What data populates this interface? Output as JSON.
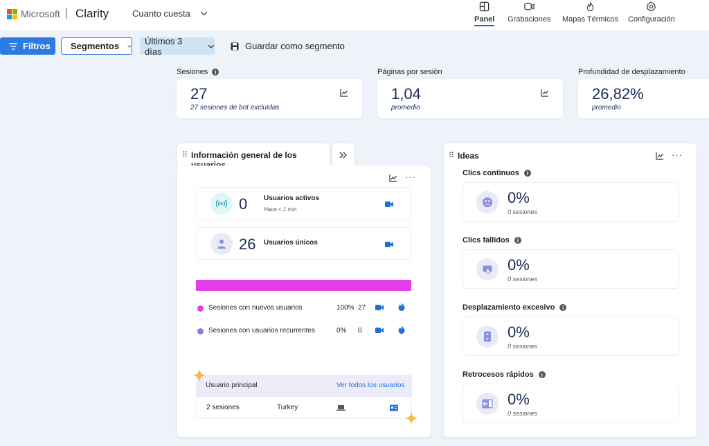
{
  "header": {
    "brand": "Microsoft",
    "product": "Clarity",
    "project": "Cuanto cuesta",
    "nav": [
      {
        "label": "Panel",
        "icon": "dashboard-icon",
        "active": true
      },
      {
        "label": "Grabaciones",
        "icon": "video-icon",
        "active": false
      },
      {
        "label": "Mapas Térmicos",
        "icon": "flame-icon",
        "active": false
      },
      {
        "label": "Configuración",
        "icon": "gear-icon",
        "active": false
      }
    ]
  },
  "toolbar": {
    "filters": "Filtros",
    "segments": "Segmentos",
    "range": "Últimos 3 días",
    "save": "Guardar como segmento"
  },
  "metrics": [
    {
      "label": "Sesiones",
      "value": "27",
      "sub": "27 sesiones de bot excluidas"
    },
    {
      "label": "Páginas por sesión",
      "value": "1,04",
      "sub": "promedio"
    },
    {
      "label": "Profundidad de desplazamiento",
      "value": "26,82%",
      "sub": "promedio"
    }
  ],
  "users_panel": {
    "title": "Información general de los usuarios",
    "active": {
      "value": "0",
      "label": "Usuarios activos",
      "sub": "Hace < 1 min"
    },
    "unique": {
      "value": "26",
      "label": "Usuarios únicos"
    },
    "bar_new_fraction": 1.0,
    "legend": [
      {
        "label": "Sesiones con nuevos usuarios",
        "pct": "100%",
        "count": "27",
        "color": "#e43ee6"
      },
      {
        "label": "Sesiones con usuarios recurrentes",
        "pct": "0%",
        "count": "0",
        "color": "#7b7fe8"
      }
    ],
    "top_user": {
      "header": "Usuario principal",
      "link": "Ver todos los usuarios",
      "sessions": "2 sesiones",
      "country": "Turkey"
    }
  },
  "ideas": {
    "title": "Ideas",
    "items": [
      {
        "title": "Clics continuos",
        "pct": "0%",
        "sub": "0 sesiones",
        "icon": "angry-face-icon"
      },
      {
        "title": "Clics fallidos",
        "pct": "0%",
        "sub": "0 sesiones",
        "icon": "dead-click-icon"
      },
      {
        "title": "Desplazamiento excesivo",
        "pct": "0%",
        "sub": "0 sesiones",
        "icon": "scroll-icon"
      },
      {
        "title": "Retrocesos rápidos",
        "pct": "0%",
        "sub": "0 sesiones",
        "icon": "quick-back-icon"
      }
    ]
  },
  "colors": {
    "accent": "#2d7ae0",
    "navy": "#1a2a5a",
    "magenta": "#e43ee6",
    "violet": "#7b7fe8",
    "video": "#1f6fd6"
  }
}
